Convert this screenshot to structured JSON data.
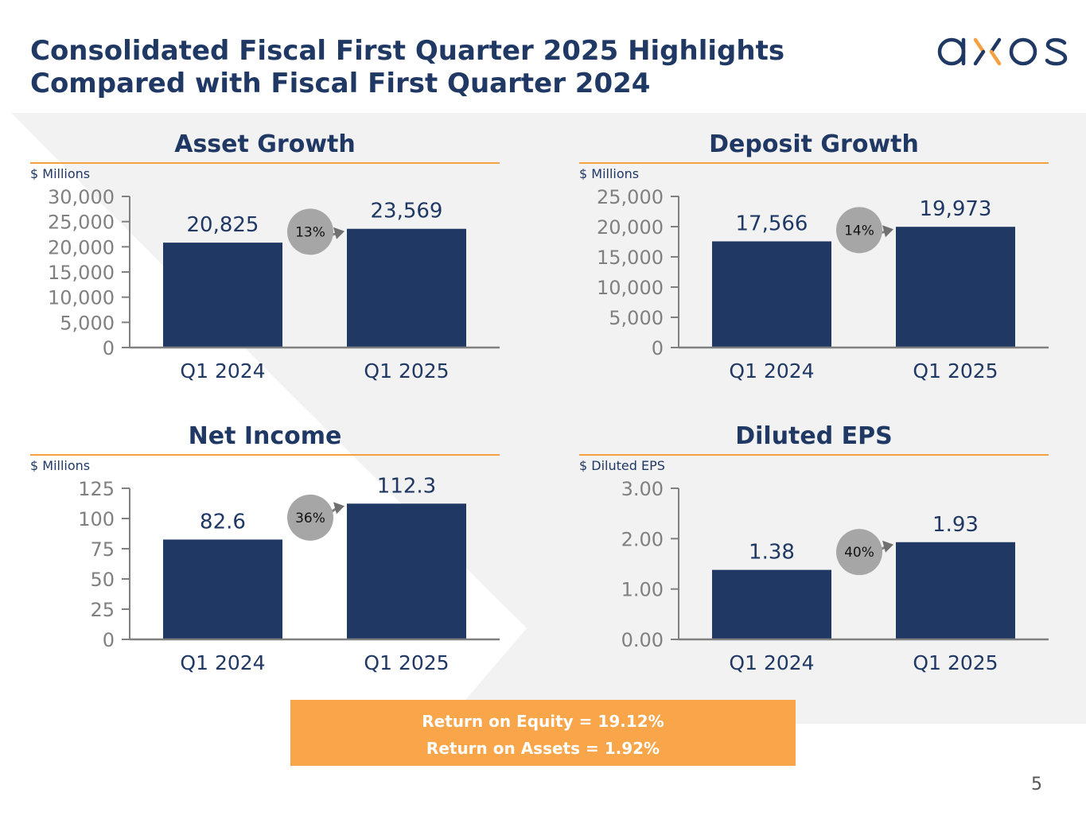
{
  "slide": {
    "title_line1": "Consolidated Fiscal First Quarter 2025 Highlights",
    "title_line2": "Compared with Fiscal First Quarter 2024",
    "logo_text": "axos",
    "page_number": "5"
  },
  "colors": {
    "navy": "#1f3864",
    "orange": "#f5a142",
    "orange_box": "#f9a54a",
    "gray_tick": "#808080",
    "badge_gray": "#a6a6a6",
    "background_gray": "#f2f2f2"
  },
  "summary": {
    "roe_text": "Return on Equity = 19.12%",
    "roa_text": "Return on Assets = 1.92%"
  },
  "chart_data": [
    {
      "type": "bar",
      "title": "Asset Growth",
      "ylabel": "$ Millions",
      "categories": [
        "Q1 2024",
        "Q1 2025"
      ],
      "values": [
        20825,
        23569
      ],
      "value_labels": [
        "20,825",
        "23,569"
      ],
      "ylim": [
        0,
        30000
      ],
      "yticks": [
        0,
        5000,
        10000,
        15000,
        20000,
        25000,
        30000
      ],
      "ytick_labels": [
        "0",
        "5,000",
        "10,000",
        "15,000",
        "20,000",
        "25,000",
        "30,000"
      ],
      "growth_label": "13%"
    },
    {
      "type": "bar",
      "title": "Deposit Growth",
      "ylabel": "$ Millions",
      "categories": [
        "Q1 2024",
        "Q1 2025"
      ],
      "values": [
        17566,
        19973
      ],
      "value_labels": [
        "17,566",
        "19,973"
      ],
      "ylim": [
        0,
        25000
      ],
      "yticks": [
        0,
        5000,
        10000,
        15000,
        20000,
        25000
      ],
      "ytick_labels": [
        "0",
        "5,000",
        "10,000",
        "15,000",
        "20,000",
        "25,000"
      ],
      "growth_label": "14%"
    },
    {
      "type": "bar",
      "title": "Net Income",
      "ylabel": "$ Millions",
      "categories": [
        "Q1 2024",
        "Q1 2025"
      ],
      "values": [
        82.6,
        112.3
      ],
      "value_labels": [
        "82.6",
        "112.3"
      ],
      "ylim": [
        0,
        125
      ],
      "yticks": [
        0,
        25,
        50,
        75,
        100,
        125
      ],
      "ytick_labels": [
        "0",
        "25",
        "50",
        "75",
        "100",
        "125"
      ],
      "growth_label": "36%"
    },
    {
      "type": "bar",
      "title": "Diluted EPS",
      "ylabel": "$ Diluted EPS",
      "categories": [
        "Q1 2024",
        "Q1 2025"
      ],
      "values": [
        1.38,
        1.93
      ],
      "value_labels": [
        "1.38",
        "1.93"
      ],
      "ylim": [
        0,
        3
      ],
      "yticks": [
        0,
        1,
        2,
        3
      ],
      "ytick_labels": [
        "0.00",
        "1.00",
        "2.00",
        "3.00"
      ],
      "growth_label": "40%"
    }
  ]
}
